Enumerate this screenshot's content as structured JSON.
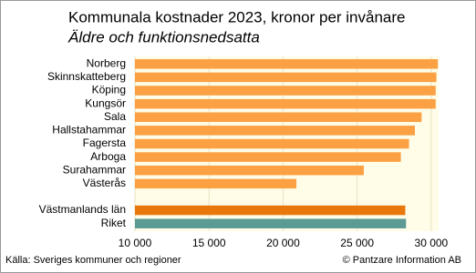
{
  "chart_data": {
    "type": "hbar",
    "title": "Kommunala kostnader 2023, kronor per invånare",
    "subtitle": "Äldre och funktionsnedsatta",
    "categories": [
      "Norberg",
      "Skinnskatteberg",
      "Köping",
      "Kungsör",
      "Sala",
      "Hallstahammar",
      "Fagersta",
      "Arboga",
      "Surahammar",
      "Västerås",
      null,
      "Västmanlands län",
      "Riket"
    ],
    "values": [
      30450,
      30350,
      30300,
      30300,
      29350,
      28900,
      28500,
      27950,
      25450,
      20900,
      null,
      28250,
      28300
    ],
    "colors": [
      "#fba043",
      "#fba043",
      "#fba043",
      "#fba043",
      "#fba043",
      "#fba043",
      "#fba043",
      "#fba043",
      "#fba043",
      "#fba043",
      null,
      "#e8780c",
      "#5c9a94"
    ],
    "xlim": [
      10000,
      30500
    ],
    "xticks": [
      {
        "value": 10000,
        "label": "10 000"
      },
      {
        "value": 15000,
        "label": "15 000"
      },
      {
        "value": 20000,
        "label": "20 000"
      },
      {
        "value": 25000,
        "label": "25 000"
      },
      {
        "value": 30000,
        "label": "30 000"
      }
    ],
    "grid": true,
    "source": "Källa: Sveriges kommuner och regioner",
    "credit": "© Pantzare Information AB"
  }
}
